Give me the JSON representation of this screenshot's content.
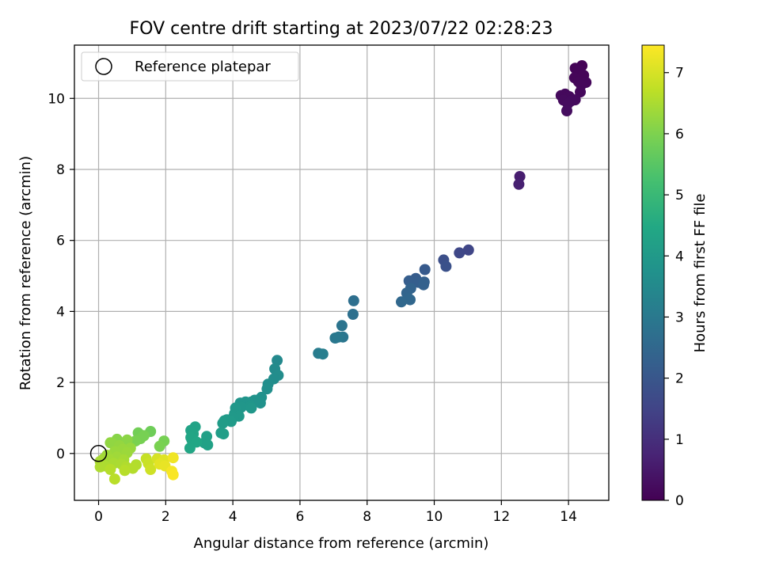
{
  "chart_data": {
    "type": "scatter",
    "title": "FOV centre drift starting at 2023/07/22 02:28:23",
    "xlabel": "Angular distance from reference (arcmin)",
    "ylabel": "Rotation from reference (arcmin)",
    "xlim": [
      -0.72,
      15.2
    ],
    "ylim": [
      -1.32,
      11.5
    ],
    "xticks": [
      0,
      2,
      4,
      6,
      8,
      10,
      12,
      14
    ],
    "yticks": [
      0,
      2,
      4,
      6,
      8,
      10
    ],
    "grid": true,
    "legend": {
      "position": "top-left",
      "entries": [
        "Reference platepar"
      ]
    },
    "reference_point": {
      "x": 0,
      "y": 0
    },
    "colorbar": {
      "label": "Hours from first FF file",
      "range": [
        0,
        7.45
      ],
      "ticks": [
        0,
        1,
        2,
        3,
        4,
        5,
        6,
        7
      ],
      "colormap": "viridis"
    },
    "points": [
      {
        "x": 14.4,
        "y": 10.92,
        "t": 0.05
      },
      {
        "x": 14.2,
        "y": 10.85,
        "t": 0.07
      },
      {
        "x": 14.32,
        "y": 10.78,
        "t": 0.08
      },
      {
        "x": 14.45,
        "y": 10.65,
        "t": 0.1
      },
      {
        "x": 14.18,
        "y": 10.58,
        "t": 0.11
      },
      {
        "x": 14.3,
        "y": 10.47,
        "t": 0.12
      },
      {
        "x": 14.52,
        "y": 10.45,
        "t": 0.13
      },
      {
        "x": 14.38,
        "y": 10.38,
        "t": 0.14
      },
      {
        "x": 14.35,
        "y": 10.18,
        "t": 0.15
      },
      {
        "x": 13.78,
        "y": 10.08,
        "t": 0.17
      },
      {
        "x": 13.9,
        "y": 10.12,
        "t": 0.18
      },
      {
        "x": 14.02,
        "y": 10.05,
        "t": 0.19
      },
      {
        "x": 14.2,
        "y": 9.96,
        "t": 0.2
      },
      {
        "x": 13.85,
        "y": 9.95,
        "t": 0.21
      },
      {
        "x": 14.08,
        "y": 9.93,
        "t": 0.22
      },
      {
        "x": 13.98,
        "y": 9.85,
        "t": 0.23
      },
      {
        "x": 13.95,
        "y": 9.65,
        "t": 0.25
      },
      {
        "x": 12.55,
        "y": 7.8,
        "t": 0.6
      },
      {
        "x": 12.52,
        "y": 7.58,
        "t": 0.65
      },
      {
        "x": 11.02,
        "y": 5.73,
        "t": 1.55
      },
      {
        "x": 10.75,
        "y": 5.65,
        "t": 1.6
      },
      {
        "x": 10.28,
        "y": 5.45,
        "t": 1.8
      },
      {
        "x": 10.35,
        "y": 5.27,
        "t": 1.85
      },
      {
        "x": 9.72,
        "y": 5.18,
        "t": 2.1
      },
      {
        "x": 9.45,
        "y": 4.93,
        "t": 2.15
      },
      {
        "x": 9.25,
        "y": 4.86,
        "t": 2.2
      },
      {
        "x": 9.52,
        "y": 4.82,
        "t": 2.22
      },
      {
        "x": 9.7,
        "y": 4.83,
        "t": 2.25
      },
      {
        "x": 9.68,
        "y": 4.75,
        "t": 2.28
      },
      {
        "x": 9.3,
        "y": 4.65,
        "t": 2.35
      },
      {
        "x": 9.18,
        "y": 4.52,
        "t": 2.4
      },
      {
        "x": 9.22,
        "y": 4.37,
        "t": 2.45
      },
      {
        "x": 9.28,
        "y": 4.33,
        "t": 2.48
      },
      {
        "x": 9.02,
        "y": 4.27,
        "t": 2.5
      },
      {
        "x": 7.6,
        "y": 4.3,
        "t": 2.7
      },
      {
        "x": 7.58,
        "y": 3.92,
        "t": 2.75
      },
      {
        "x": 7.25,
        "y": 3.6,
        "t": 2.85
      },
      {
        "x": 7.28,
        "y": 3.28,
        "t": 2.9
      },
      {
        "x": 7.05,
        "y": 3.25,
        "t": 2.95
      },
      {
        "x": 7.15,
        "y": 3.28,
        "t": 2.97
      },
      {
        "x": 6.55,
        "y": 2.82,
        "t": 3.1
      },
      {
        "x": 6.68,
        "y": 2.8,
        "t": 3.15
      },
      {
        "x": 5.32,
        "y": 2.62,
        "t": 3.5
      },
      {
        "x": 5.25,
        "y": 2.38,
        "t": 3.55
      },
      {
        "x": 5.35,
        "y": 2.2,
        "t": 3.6
      },
      {
        "x": 5.22,
        "y": 2.1,
        "t": 3.62
      },
      {
        "x": 5.05,
        "y": 1.95,
        "t": 3.65
      },
      {
        "x": 5.02,
        "y": 1.82,
        "t": 3.68
      },
      {
        "x": 4.85,
        "y": 1.58,
        "t": 3.72
      },
      {
        "x": 4.82,
        "y": 1.42,
        "t": 3.75
      },
      {
        "x": 4.65,
        "y": 1.5,
        "t": 3.78
      },
      {
        "x": 4.55,
        "y": 1.45,
        "t": 3.8
      },
      {
        "x": 4.48,
        "y": 1.42,
        "t": 3.82
      },
      {
        "x": 4.38,
        "y": 1.45,
        "t": 3.84
      },
      {
        "x": 4.22,
        "y": 1.42,
        "t": 3.86
      },
      {
        "x": 4.25,
        "y": 1.3,
        "t": 3.88
      },
      {
        "x": 4.52,
        "y": 1.32,
        "t": 3.9
      },
      {
        "x": 4.55,
        "y": 1.28,
        "t": 3.92
      },
      {
        "x": 4.08,
        "y": 1.28,
        "t": 3.94
      },
      {
        "x": 4.05,
        "y": 1.12,
        "t": 3.96
      },
      {
        "x": 4.18,
        "y": 1.05,
        "t": 3.98
      },
      {
        "x": 4.0,
        "y": 1.0,
        "t": 4.0
      },
      {
        "x": 3.82,
        "y": 0.95,
        "t": 4.02
      },
      {
        "x": 3.95,
        "y": 0.9,
        "t": 4.04
      },
      {
        "x": 3.75,
        "y": 0.92,
        "t": 4.06
      },
      {
        "x": 3.7,
        "y": 0.85,
        "t": 4.08
      },
      {
        "x": 3.65,
        "y": 0.58,
        "t": 4.12
      },
      {
        "x": 3.72,
        "y": 0.55,
        "t": 4.14
      },
      {
        "x": 3.22,
        "y": 0.48,
        "t": 4.2
      },
      {
        "x": 3.15,
        "y": 0.3,
        "t": 4.22
      },
      {
        "x": 3.25,
        "y": 0.24,
        "t": 4.24
      },
      {
        "x": 2.88,
        "y": 0.75,
        "t": 4.3
      },
      {
        "x": 2.75,
        "y": 0.65,
        "t": 4.32
      },
      {
        "x": 2.82,
        "y": 0.55,
        "t": 4.34
      },
      {
        "x": 2.75,
        "y": 0.45,
        "t": 4.36
      },
      {
        "x": 2.78,
        "y": 0.38,
        "t": 4.38
      },
      {
        "x": 2.92,
        "y": 0.32,
        "t": 4.4
      },
      {
        "x": 2.72,
        "y": 0.15,
        "t": 4.42
      },
      {
        "x": 1.55,
        "y": 0.62,
        "t": 5.8
      },
      {
        "x": 1.18,
        "y": 0.58,
        "t": 5.85
      },
      {
        "x": 1.25,
        "y": 0.42,
        "t": 5.9
      },
      {
        "x": 1.35,
        "y": 0.5,
        "t": 5.92
      },
      {
        "x": 1.1,
        "y": 0.35,
        "t": 5.95
      },
      {
        "x": 1.95,
        "y": 0.35,
        "t": 5.9
      },
      {
        "x": 1.82,
        "y": 0.2,
        "t": 5.95
      },
      {
        "x": 0.55,
        "y": 0.4,
        "t": 6.1
      },
      {
        "x": 0.85,
        "y": 0.38,
        "t": 6.15
      },
      {
        "x": 0.42,
        "y": 0.28,
        "t": 6.2
      },
      {
        "x": 0.35,
        "y": 0.3,
        "t": 6.22
      },
      {
        "x": 0.62,
        "y": 0.22,
        "t": 6.25
      },
      {
        "x": 0.95,
        "y": 0.15,
        "t": 6.28
      },
      {
        "x": 0.72,
        "y": 0.12,
        "t": 6.3
      },
      {
        "x": 0.48,
        "y": 0.05,
        "t": 6.32
      },
      {
        "x": 0.85,
        "y": 0.02,
        "t": 6.34
      },
      {
        "x": 0.25,
        "y": -0.05,
        "t": 6.36
      },
      {
        "x": 0.55,
        "y": -0.1,
        "t": 6.38
      },
      {
        "x": 0.15,
        "y": -0.15,
        "t": 6.4
      },
      {
        "x": 0.32,
        "y": -0.18,
        "t": 6.42
      },
      {
        "x": 0.75,
        "y": -0.18,
        "t": 6.44
      },
      {
        "x": 0.05,
        "y": -0.22,
        "t": 6.46
      },
      {
        "x": 0.45,
        "y": -0.28,
        "t": 6.48
      },
      {
        "x": 0.68,
        "y": -0.3,
        "t": 6.5
      },
      {
        "x": 0.18,
        "y": -0.35,
        "t": 6.52
      },
      {
        "x": 0.05,
        "y": -0.38,
        "t": 6.54
      },
      {
        "x": 0.82,
        "y": -0.38,
        "t": 6.56
      },
      {
        "x": 1.12,
        "y": -0.32,
        "t": 6.58
      },
      {
        "x": 1.02,
        "y": -0.42,
        "t": 6.6
      },
      {
        "x": 0.35,
        "y": -0.45,
        "t": 6.62
      },
      {
        "x": 0.78,
        "y": -0.48,
        "t": 6.64
      },
      {
        "x": 0.48,
        "y": -0.72,
        "t": 6.66
      },
      {
        "x": 1.42,
        "y": -0.15,
        "t": 6.8
      },
      {
        "x": 1.48,
        "y": -0.28,
        "t": 6.85
      },
      {
        "x": 1.55,
        "y": -0.45,
        "t": 6.9
      },
      {
        "x": 1.75,
        "y": -0.15,
        "t": 7.0
      },
      {
        "x": 1.95,
        "y": -0.18,
        "t": 7.1
      },
      {
        "x": 1.82,
        "y": -0.3,
        "t": 7.15
      },
      {
        "x": 1.98,
        "y": -0.35,
        "t": 7.2
      },
      {
        "x": 2.22,
        "y": -0.12,
        "t": 7.3
      },
      {
        "x": 2.18,
        "y": -0.5,
        "t": 7.35
      },
      {
        "x": 2.22,
        "y": -0.6,
        "t": 7.4
      }
    ]
  }
}
